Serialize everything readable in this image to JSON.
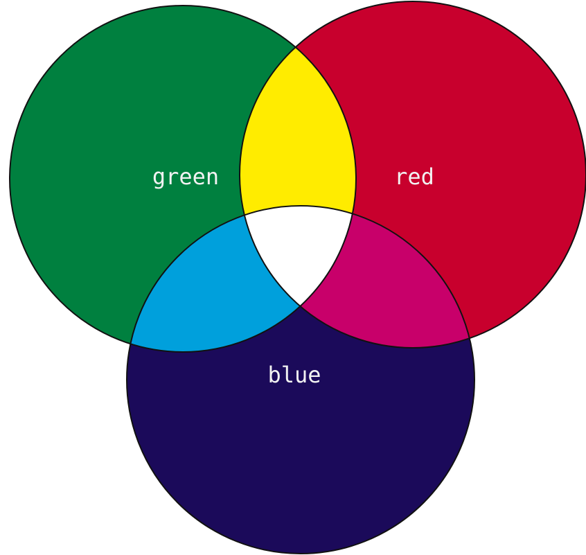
{
  "nodes": [
    {
      "label": "green"
    },
    {
      "label": "red"
    },
    {
      "label": "blue"
    }
  ]
}
